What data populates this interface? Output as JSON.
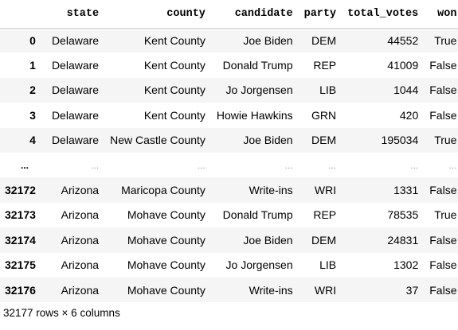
{
  "dataframe": {
    "index_header": "",
    "columns": [
      "state",
      "county",
      "candidate",
      "party",
      "total_votes",
      "won"
    ],
    "rows": [
      {
        "index": "0",
        "state": "Delaware",
        "county": "Kent County",
        "candidate": "Joe Biden",
        "party": "DEM",
        "total_votes": "44552",
        "won": "True"
      },
      {
        "index": "1",
        "state": "Delaware",
        "county": "Kent County",
        "candidate": "Donald Trump",
        "party": "REP",
        "total_votes": "41009",
        "won": "False"
      },
      {
        "index": "2",
        "state": "Delaware",
        "county": "Kent County",
        "candidate": "Jo Jorgensen",
        "party": "LIB",
        "total_votes": "1044",
        "won": "False"
      },
      {
        "index": "3",
        "state": "Delaware",
        "county": "Kent County",
        "candidate": "Howie Hawkins",
        "party": "GRN",
        "total_votes": "420",
        "won": "False"
      },
      {
        "index": "4",
        "state": "Delaware",
        "county": "New Castle County",
        "candidate": "Joe Biden",
        "party": "DEM",
        "total_votes": "195034",
        "won": "True"
      },
      {
        "index": "...",
        "state": "...",
        "county": "...",
        "candidate": "...",
        "party": "...",
        "total_votes": "...",
        "won": "...",
        "ellipsis": true
      },
      {
        "index": "32172",
        "state": "Arizona",
        "county": "Maricopa County",
        "candidate": "Write-ins",
        "party": "WRI",
        "total_votes": "1331",
        "won": "False"
      },
      {
        "index": "32173",
        "state": "Arizona",
        "county": "Mohave County",
        "candidate": "Donald Trump",
        "party": "REP",
        "total_votes": "78535",
        "won": "True"
      },
      {
        "index": "32174",
        "state": "Arizona",
        "county": "Mohave County",
        "candidate": "Joe Biden",
        "party": "DEM",
        "total_votes": "24831",
        "won": "False"
      },
      {
        "index": "32175",
        "state": "Arizona",
        "county": "Mohave County",
        "candidate": "Jo Jorgensen",
        "party": "LIB",
        "total_votes": "1302",
        "won": "False"
      },
      {
        "index": "32176",
        "state": "Arizona",
        "county": "Mohave County",
        "candidate": "Write-ins",
        "party": "WRI",
        "total_votes": "37",
        "won": "False"
      }
    ],
    "shape_text": "32177 rows × 6 columns"
  },
  "colors": {
    "odd_row": "#f5f5f5",
    "even_row": "#ffffff",
    "header_border": "#cfcfcf",
    "ellipsis_text": "#9a9a9a"
  }
}
